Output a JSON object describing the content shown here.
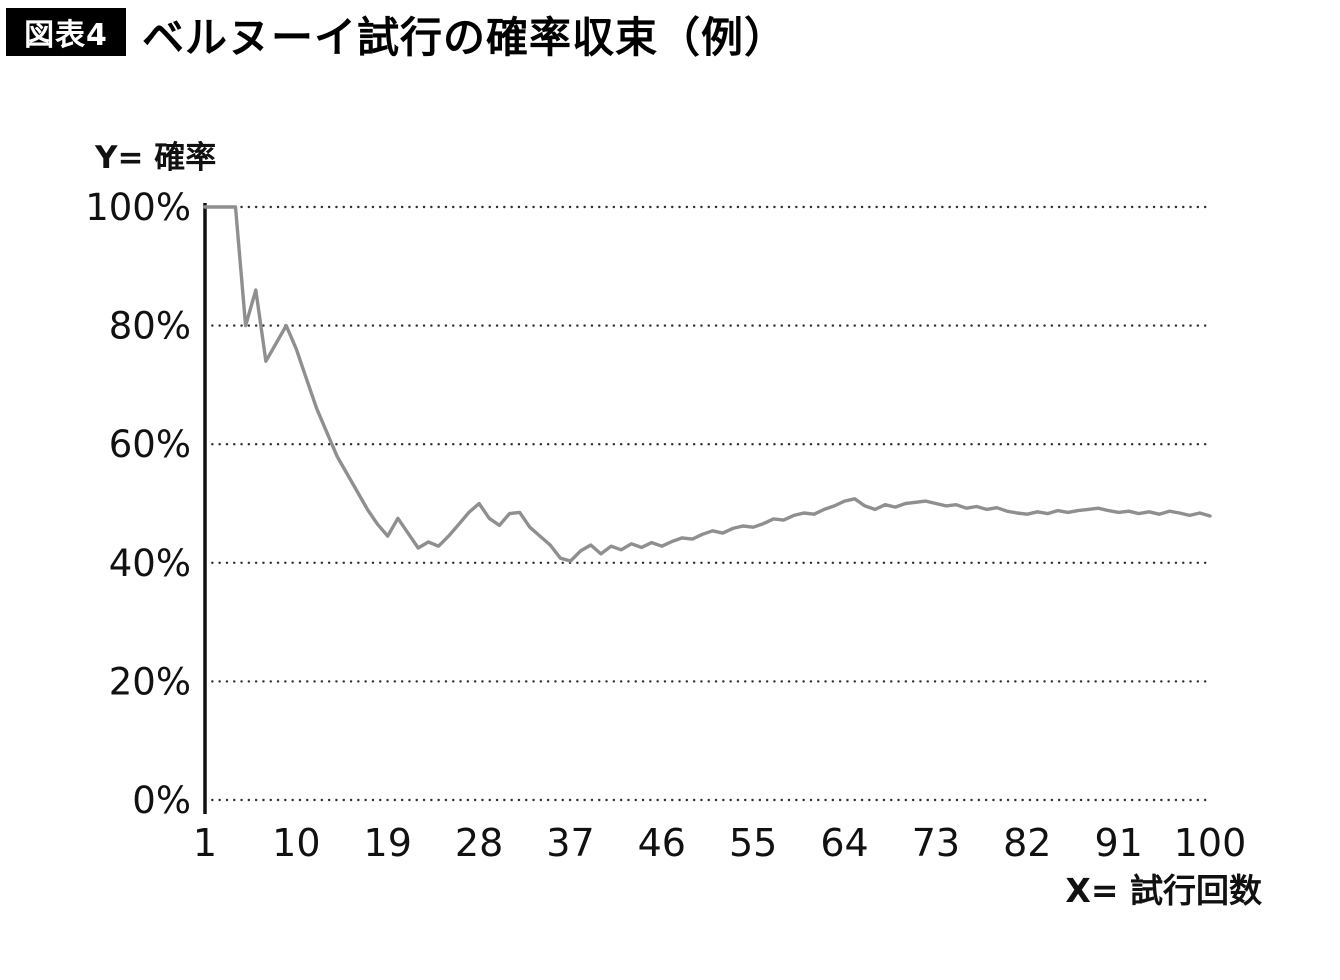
{
  "chart_data": {
    "type": "line",
    "figure_label": "図表4",
    "title": "ベルヌーイ試行の確率収束（例）",
    "xlabel": "X= 試行回数",
    "ylabel": "Y= 確率",
    "x_ticks": [
      1,
      10,
      19,
      28,
      37,
      46,
      55,
      64,
      73,
      82,
      91,
      100
    ],
    "y_tick_labels": [
      "100%",
      "80%",
      "60%",
      "40%",
      "20%",
      "0%"
    ],
    "y_tick_values": [
      100,
      80,
      60,
      40,
      20,
      0
    ],
    "xlim": [
      1,
      100
    ],
    "ylim": [
      0,
      100
    ],
    "grid": "horizontal-dotted",
    "legend": "none",
    "line_color": "#8f8f8f",
    "axis_color": "#111111",
    "series": [
      {
        "name": "確率",
        "x": [
          1,
          2,
          3,
          4,
          5,
          6,
          7,
          8,
          9,
          10,
          11,
          12,
          13,
          14,
          15,
          16,
          17,
          18,
          19,
          20,
          21,
          22,
          23,
          24,
          25,
          26,
          27,
          28,
          29,
          30,
          31,
          32,
          33,
          34,
          35,
          36,
          37,
          38,
          39,
          40,
          41,
          42,
          43,
          44,
          45,
          46,
          47,
          48,
          49,
          50,
          51,
          52,
          53,
          54,
          55,
          56,
          57,
          58,
          59,
          60,
          61,
          62,
          63,
          64,
          65,
          66,
          67,
          68,
          69,
          70,
          71,
          72,
          73,
          74,
          75,
          76,
          77,
          78,
          79,
          80,
          81,
          82,
          83,
          84,
          85,
          86,
          87,
          88,
          89,
          90,
          91,
          92,
          93,
          94,
          95,
          96,
          97,
          98,
          99,
          100
        ],
        "values": [
          100,
          100,
          100,
          100,
          80,
          86,
          74,
          77,
          80,
          76,
          71,
          66,
          62,
          58,
          55,
          52,
          49,
          46.5,
          44.5,
          47.5,
          45,
          42.5,
          43.5,
          42.8,
          44.5,
          46.5,
          48.5,
          50,
          47.5,
          46.3,
          48.3,
          48.5,
          46,
          44.5,
          43,
          40.8,
          40.3,
          42,
          43,
          41.5,
          42.8,
          42.2,
          43.2,
          42.6,
          43.4,
          42.8,
          43.6,
          44.2,
          44,
          44.8,
          45.4,
          45,
          45.8,
          46.2,
          46,
          46.6,
          47.4,
          47.2,
          48,
          48.4,
          48.2,
          49,
          49.6,
          50.4,
          50.8,
          49.6,
          49,
          49.8,
          49.4,
          50,
          50.2,
          50.4,
          50,
          49.6,
          49.8,
          49.2,
          49.5,
          49,
          49.3,
          48.7,
          48.4,
          48.2,
          48.6,
          48.3,
          48.8,
          48.5,
          48.8,
          49,
          49.2,
          48.8,
          48.5,
          48.7,
          48.3,
          48.6,
          48.2,
          48.7,
          48.4,
          48,
          48.4,
          47.9
        ]
      }
    ]
  }
}
